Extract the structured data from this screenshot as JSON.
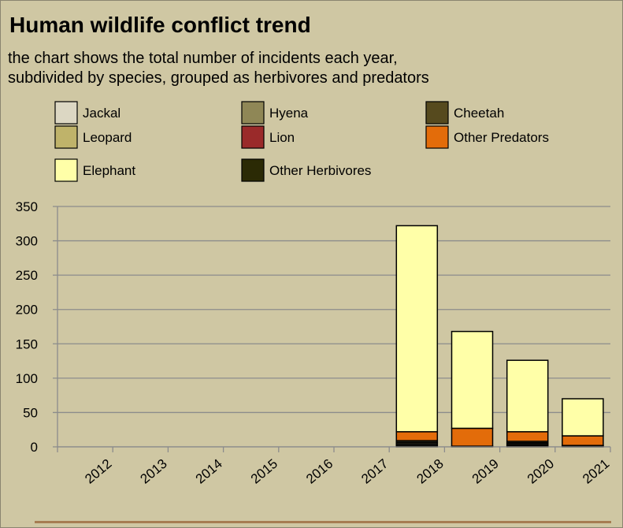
{
  "title": "Human wildlife conflict trend",
  "subtitle_lines": [
    "the chart shows the total number of incidents each year,",
    "subdivided by species, grouped as herbivores and predators"
  ],
  "colors": {
    "background": "#CFC7A3",
    "grid": "#8C8C8C",
    "bar_outline": "#000000",
    "footer_line": "#A67C52"
  },
  "chart_data": {
    "type": "bar",
    "stacked": true,
    "categories": [
      "2012",
      "2013",
      "2014",
      "2015",
      "2016",
      "2017",
      "2018",
      "2019",
      "2020",
      "2021"
    ],
    "ylim": [
      0,
      350
    ],
    "yticks": [
      0,
      50,
      100,
      150,
      200,
      250,
      300,
      350
    ],
    "grid": true,
    "legend_position": "top",
    "series": [
      {
        "name": "Other Herbivores",
        "color": "#2B2A05",
        "values": [
          0,
          0,
          0,
          0,
          0,
          0,
          2,
          0,
          2,
          1
        ]
      },
      {
        "name": "Jackal",
        "color": "#DCD7C3",
        "values": [
          0,
          0,
          0,
          0,
          0,
          0,
          2,
          0,
          1,
          0
        ]
      },
      {
        "name": "Hyena",
        "color": "#8F8756",
        "values": [
          0,
          0,
          0,
          0,
          0,
          0,
          2,
          1,
          2,
          1
        ]
      },
      {
        "name": "Cheetah",
        "color": "#564A1E",
        "values": [
          0,
          0,
          0,
          0,
          0,
          0,
          1,
          0,
          1,
          0
        ]
      },
      {
        "name": "Leopard",
        "color": "#BFB36A",
        "values": [
          0,
          0,
          0,
          0,
          0,
          0,
          2,
          0,
          2,
          0
        ]
      },
      {
        "name": "Lion",
        "color": "#9A2A2A",
        "values": [
          0,
          0,
          0,
          0,
          0,
          0,
          0,
          0,
          0,
          0
        ]
      },
      {
        "name": "Other Predators",
        "color": "#E36C0A",
        "values": [
          0,
          0,
          0,
          0,
          0,
          0,
          13,
          26,
          14,
          14
        ]
      },
      {
        "name": "Elephant",
        "color": "#FFFFA8",
        "values": [
          0,
          0,
          0,
          0,
          0,
          0,
          300,
          141,
          104,
          54
        ]
      }
    ],
    "legend_order": [
      "Jackal",
      "Hyena",
      "Cheetah",
      "Leopard",
      "Lion",
      "Other Predators",
      "Elephant",
      "Other Herbivores"
    ]
  }
}
